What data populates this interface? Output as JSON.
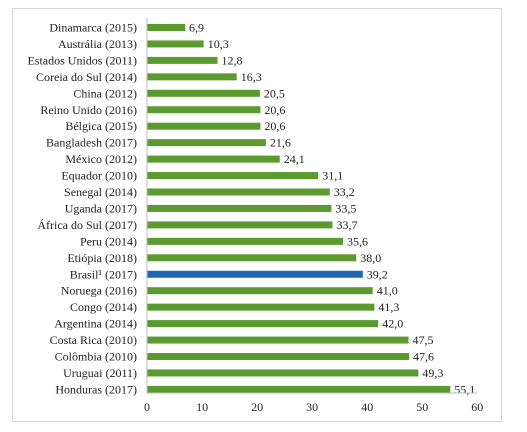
{
  "chart_data": {
    "type": "bar",
    "orientation": "horizontal",
    "title": "",
    "xlabel": "",
    "ylabel": "",
    "xlim": [
      0,
      60
    ],
    "ticks": [
      0,
      10,
      20,
      30,
      40,
      50,
      60
    ],
    "tick_labels": [
      "0",
      "10",
      "20",
      "30",
      "40",
      "50",
      "60"
    ],
    "grid": false,
    "legend": "none",
    "colors": {
      "default": "#5a9a2f",
      "highlight": "#1f67b0"
    },
    "categories": [
      "Dinamarca (2015)",
      "Austrália (2013)",
      "Estados Unidos (2011)",
      "Coreia do Sul (2014)",
      "China (2012)",
      "Reino Unido (2016)",
      "Bélgica (2015)",
      "Bangladesh (2017)",
      "México (2012)",
      "Equador (2010)",
      "Senegal (2014)",
      "Uganda (2017)",
      "África do Sul (2017)",
      "Peru (2014)",
      "Etiópia (2018)",
      "Brasil¹ (2017)",
      "Noruega (2016)",
      "Congo (2014)",
      "Argentina (2014)",
      "Costa Rica (2010)",
      "Colômbia (2010)",
      "Uruguai (2011)",
      "Honduras (2017)"
    ],
    "values": [
      6.9,
      10.3,
      12.8,
      16.3,
      20.5,
      20.6,
      20.6,
      21.6,
      24.1,
      31.1,
      33.2,
      33.5,
      33.7,
      35.6,
      38.0,
      39.2,
      41.0,
      41.3,
      42.0,
      47.5,
      47.6,
      49.3,
      55.1
    ],
    "value_labels": [
      "6,9",
      "10,3",
      "12,8",
      "16,3",
      "20,5",
      "20,6",
      "20,6",
      "21,6",
      "24,1",
      "31,1",
      "33,2",
      "33,5",
      "33,7",
      "35,6",
      "38,0",
      "39,2",
      "41,0",
      "41,3",
      "42,0",
      "47,5",
      "47,6",
      "49,3",
      "55,1"
    ],
    "highlight_index": 15
  }
}
